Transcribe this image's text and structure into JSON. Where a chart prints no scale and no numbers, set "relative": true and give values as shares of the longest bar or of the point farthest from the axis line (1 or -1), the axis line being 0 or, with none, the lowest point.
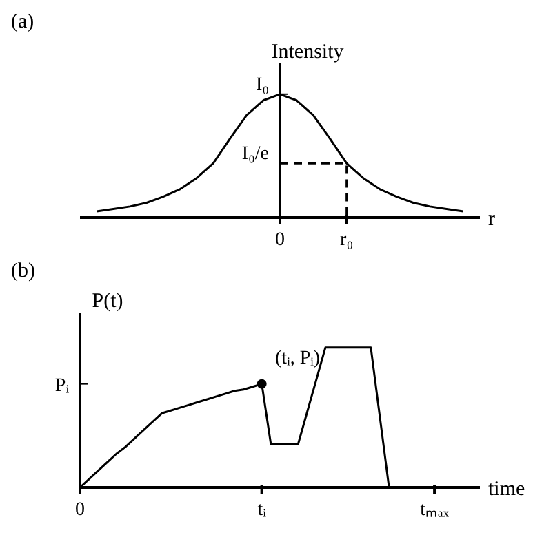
{
  "chart_data": [
    {
      "type": "line",
      "title": "(a)",
      "ylabel": "Intensity",
      "xlabel": "r",
      "relative": true,
      "marker": "none",
      "categories": [
        null,
        null,
        null,
        null,
        null,
        null,
        null,
        null,
        null,
        null,
        null,
        null,
        "0",
        null,
        null,
        null,
        "r₀",
        null,
        null,
        null,
        null,
        null,
        null,
        null,
        null
      ],
      "annotations": [
        {
          "text": "I₀",
          "x": "0",
          "y": 1
        },
        {
          "text": "I₀/e",
          "x": "0",
          "y": 0.44
        }
      ],
      "series": [
        {
          "color": "#000000",
          "values": [
            null,
            0.05,
            0.07,
            0.09,
            0.12,
            0.17,
            0.23,
            0.32,
            0.44,
            0.64,
            0.83,
            0.95,
            1,
            0.95,
            0.83,
            0.64,
            0.44,
            0.32,
            0.23,
            0.17,
            0.12,
            0.09,
            0.07,
            0.05,
            null
          ]
        },
        {
          "type": "step",
          "color": "#000000",
          "line_style": "dashed",
          "values": [
            null,
            null,
            null,
            null,
            null,
            null,
            null,
            null,
            null,
            null,
            null,
            null,
            0.44,
            0.44,
            0.44,
            0.44,
            0,
            null,
            null,
            null,
            null,
            null,
            null,
            null,
            null
          ]
        }
      ]
    },
    {
      "type": "line",
      "title": "(b)",
      "ylabel": "P(t)",
      "xlabel": "time",
      "relative": true,
      "marker": "none",
      "categories": [
        "0",
        null,
        null,
        null,
        null,
        null,
        null,
        null,
        null,
        null,
        null,
        null,
        null,
        null,
        null,
        null,
        null,
        null,
        null,
        null,
        "tᵢ",
        null,
        null,
        null,
        null,
        null,
        null,
        null,
        null,
        null,
        null,
        null,
        null,
        null,
        null,
        null,
        null,
        null,
        null,
        "tₘₐₓ",
        null,
        null,
        null,
        null,
        null
      ],
      "ref_lines": [
        {
          "axis": "y",
          "value": 0.74,
          "label": "Pᵢ"
        }
      ],
      "annotations": [
        {
          "text": "(tᵢ, Pᵢ)",
          "x": "tᵢ",
          "y": 0.74
        }
      ],
      "series": [
        {
          "color": "#000000",
          "values": [
            0,
            0.06,
            0.12,
            0.18,
            0.24,
            0.29,
            0.35,
            0.41,
            0.47,
            0.53,
            0.55,
            0.57,
            0.59,
            0.61,
            0.63,
            0.65,
            0.67,
            0.69,
            0.7,
            0.72,
            0.74,
            0.31,
            0.31,
            0.31,
            0.31,
            0.54,
            0.77,
            1,
            1,
            1,
            1,
            1,
            1,
            0.5,
            0,
            null,
            null,
            null,
            null,
            null,
            null,
            null,
            null,
            null,
            null
          ]
        }
      ]
    }
  ]
}
